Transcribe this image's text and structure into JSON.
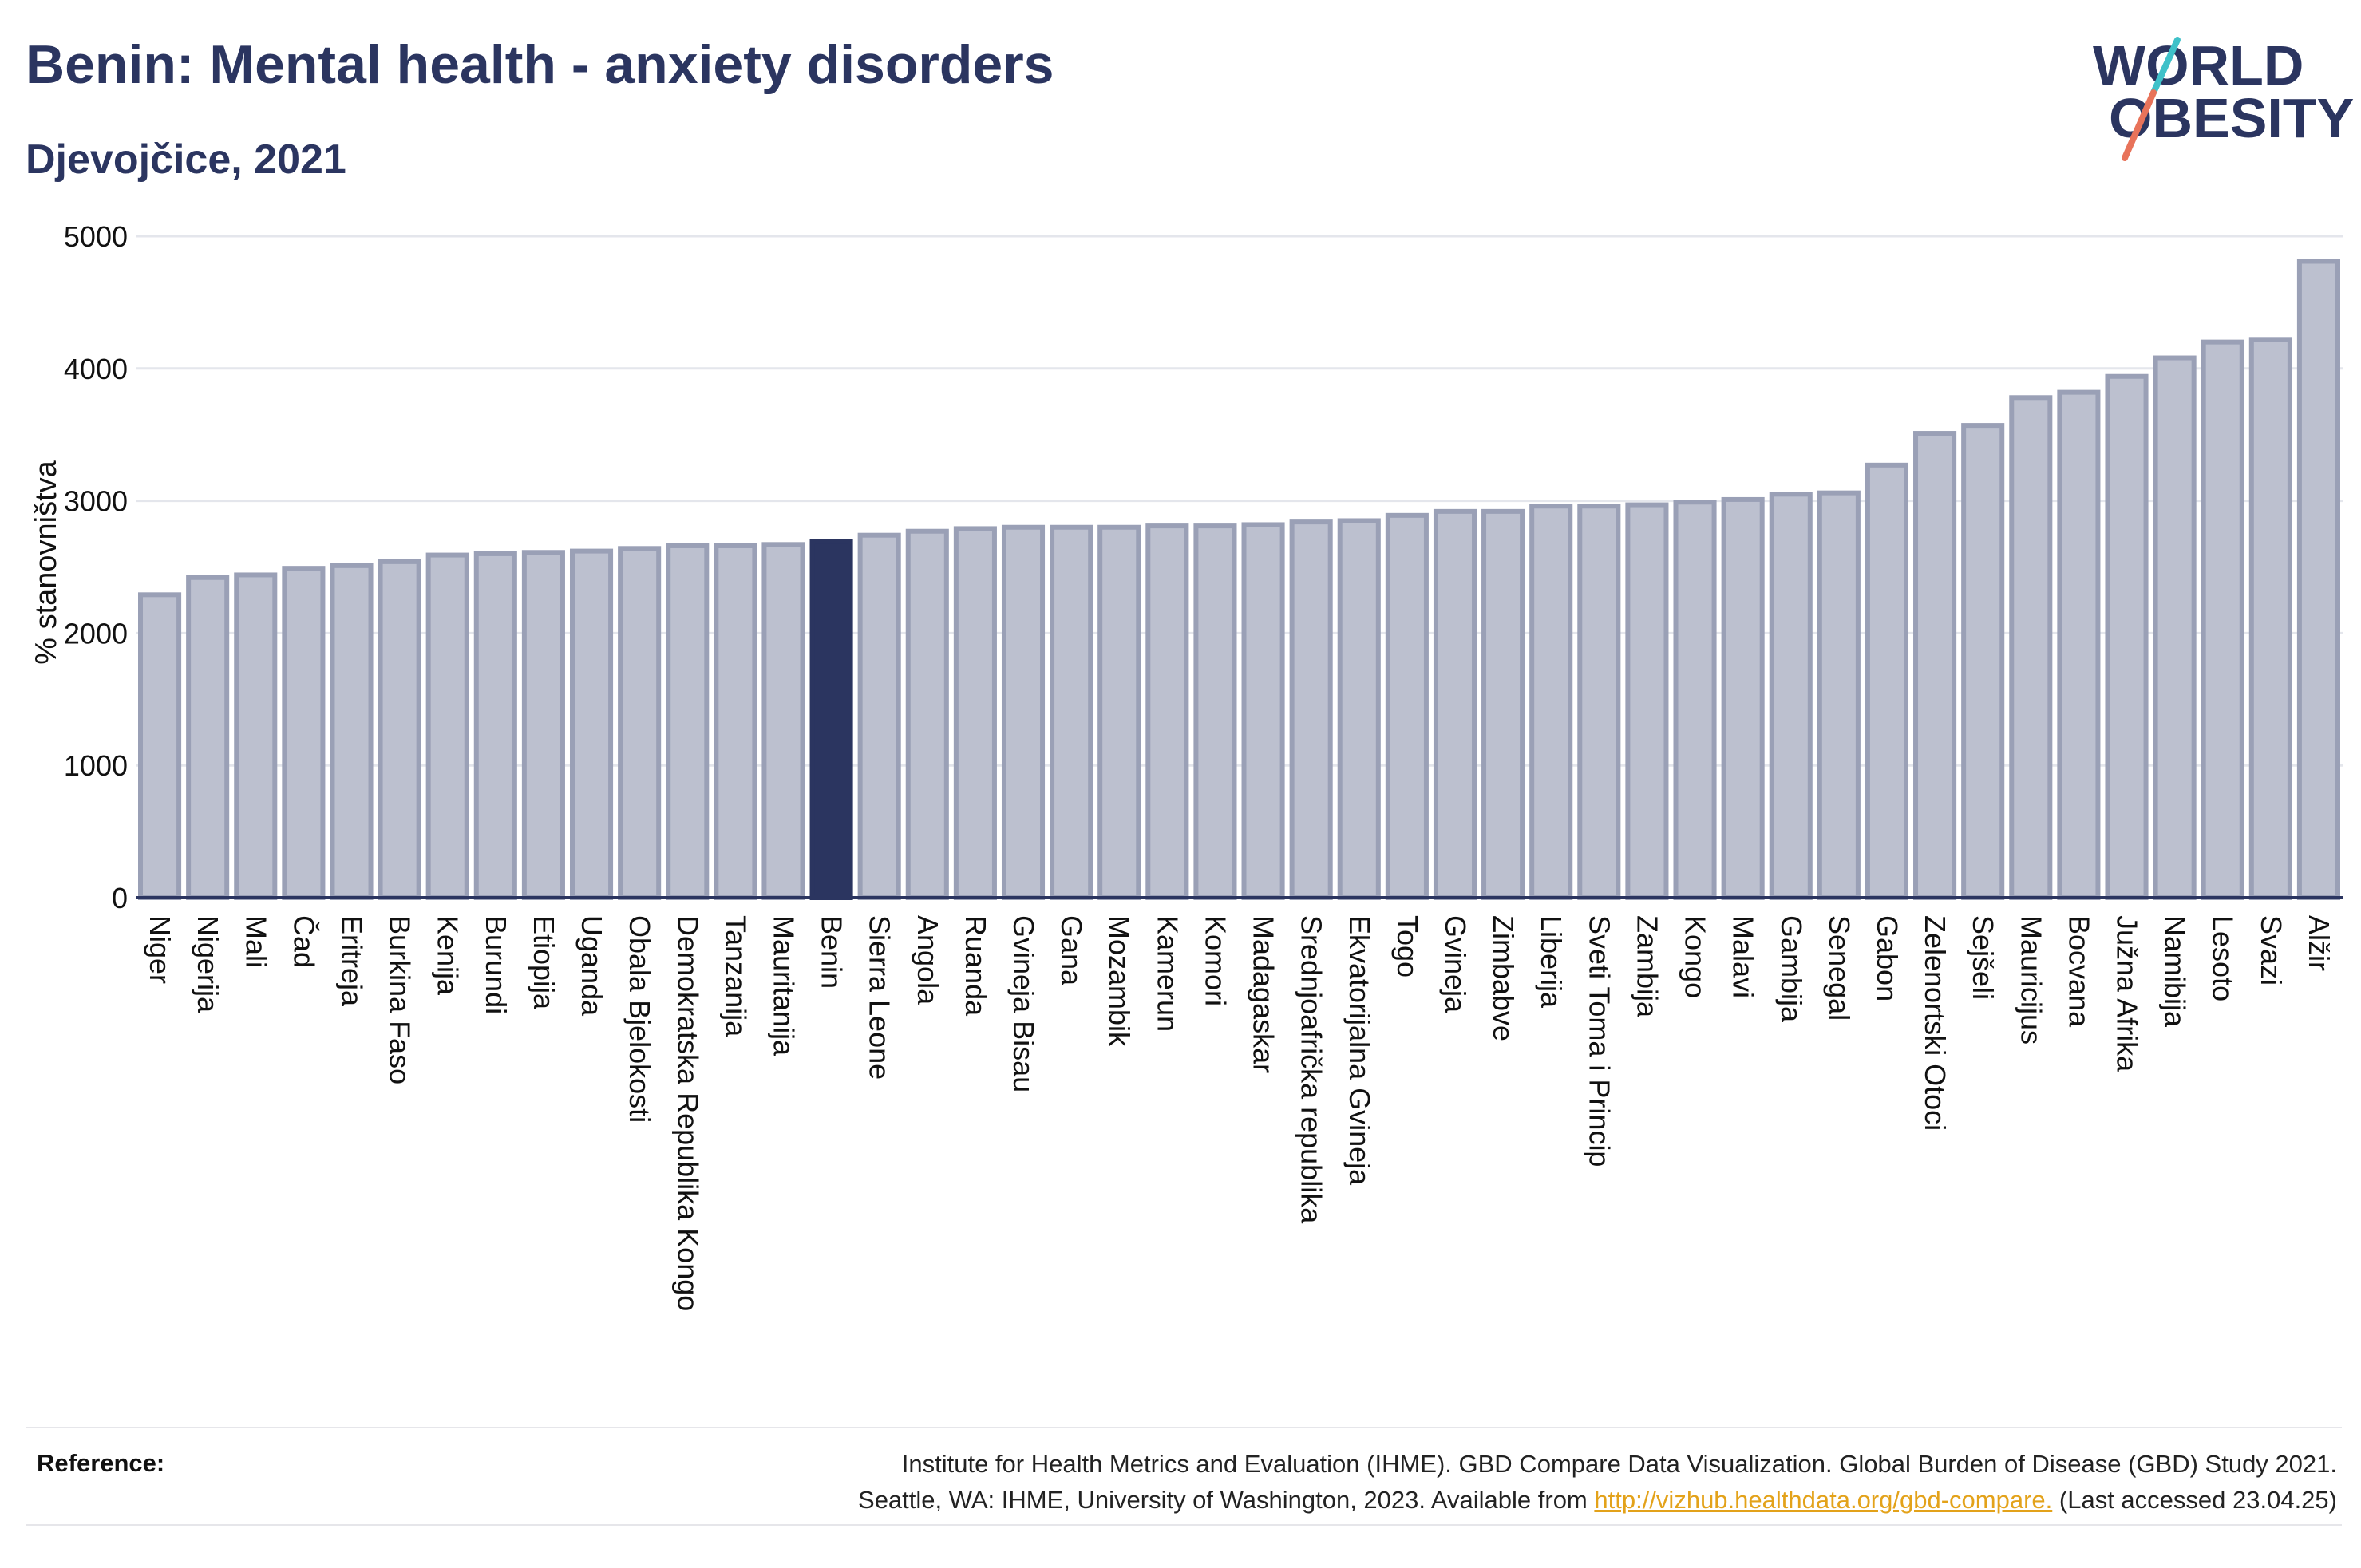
{
  "header": {
    "title": "Benin: Mental health - anxiety disorders",
    "subtitle": "Djevojčice, 2021"
  },
  "logo": {
    "line1": "WORLD",
    "line2": "OBESITY",
    "accent_colors": [
      "#3fc1c9",
      "#e8735a"
    ]
  },
  "colors": {
    "bar": "#bcc0cf",
    "bar_edge": "#9aa0b6",
    "highlight": "#2b3560",
    "grid": "#e4e6ec",
    "axis": "#2b3560"
  },
  "chart_data": {
    "type": "bar",
    "title": "Benin: Mental health - anxiety disorders",
    "subtitle": "Djevojčice, 2021",
    "ylabel": "% stanovništva",
    "xlabel": "",
    "ylim": [
      0,
      5000
    ],
    "yticks": [
      0,
      1000,
      2000,
      3000,
      4000,
      5000
    ],
    "grid": true,
    "highlight": "Benin",
    "categories": [
      "Niger",
      "Nigerija",
      "Mali",
      "Čad",
      "Eritreja",
      "Burkina Faso",
      "Kenija",
      "Burundi",
      "Etiopija",
      "Uganda",
      "Obala Bjelokosti",
      "Demokratska Republika Kongo",
      "Tanzanija",
      "Mauritanija",
      "Benin",
      "Sierra Leone",
      "Angola",
      "Ruanda",
      "Gvineja Bisau",
      "Gana",
      "Mozambik",
      "Kamerun",
      "Komori",
      "Madagaskar",
      "Srednjoafrička republika",
      "Ekvatorijalna Gvineja",
      "Togo",
      "Gvineja",
      "Zimbabve",
      "Liberija",
      "Sveti Toma i Princip",
      "Zambija",
      "Kongo",
      "Malavi",
      "Gambija",
      "Senegal",
      "Gabon",
      "Zelenortski Otoci",
      "Sejšeli",
      "Mauricijus",
      "Bocvana",
      "Južna Afrika",
      "Namibija",
      "Lesoto",
      "Svazi",
      "Alžir"
    ],
    "values": [
      2290,
      2420,
      2440,
      2490,
      2510,
      2540,
      2590,
      2600,
      2610,
      2620,
      2640,
      2660,
      2660,
      2670,
      2690,
      2740,
      2770,
      2790,
      2800,
      2800,
      2800,
      2810,
      2810,
      2820,
      2840,
      2850,
      2890,
      2920,
      2920,
      2960,
      2960,
      2970,
      2990,
      3010,
      3050,
      3060,
      3270,
      3510,
      3570,
      3780,
      3820,
      3940,
      4080,
      4200,
      4220,
      4810
    ]
  },
  "reference": {
    "label": "Reference:",
    "line1": "Institute for Health Metrics and Evaluation (IHME). GBD Compare Data Visualization. Global Burden of Disease (GBD) Study 2021.",
    "line2_prefix": "Seattle, WA: IHME, University of Washington, 2023. Available from",
    "link": "http://vizhub.healthdata.org/gbd-compare.",
    "line2_suffix": "(Last accessed 23.04.25)"
  }
}
